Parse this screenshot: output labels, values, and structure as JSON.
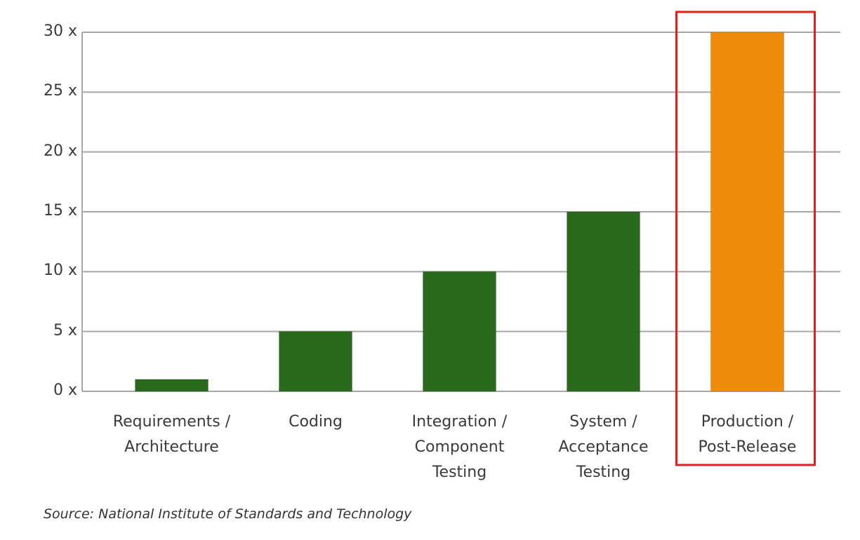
{
  "chart_data": {
    "type": "bar",
    "source": "Source: National Institute of Standards and Technology",
    "categories": [
      "Requirements /\nArchitecture",
      "Coding",
      "Integration /\nComponent\nTesting",
      "System /\nAcceptance\nTesting",
      "Production /\nPost-Release"
    ],
    "values": [
      1,
      5,
      10,
      15,
      30
    ],
    "colors": [
      "#2a6a1c",
      "#2a6a1c",
      "#2a6a1c",
      "#2a6a1c",
      "#f08c0c"
    ],
    "ylim": [
      0,
      30
    ],
    "yticks": [
      {
        "value": 0,
        "label": "0 x"
      },
      {
        "value": 5,
        "label": "5 x"
      },
      {
        "value": 10,
        "label": "10 x"
      },
      {
        "value": 15,
        "label": "15 x"
      },
      {
        "value": 20,
        "label": "20 x"
      },
      {
        "value": 25,
        "label": "25 x"
      },
      {
        "value": 30,
        "label": "30 x"
      }
    ],
    "grid": true,
    "highlight": {
      "index": 4,
      "color": "#e0201c"
    }
  }
}
